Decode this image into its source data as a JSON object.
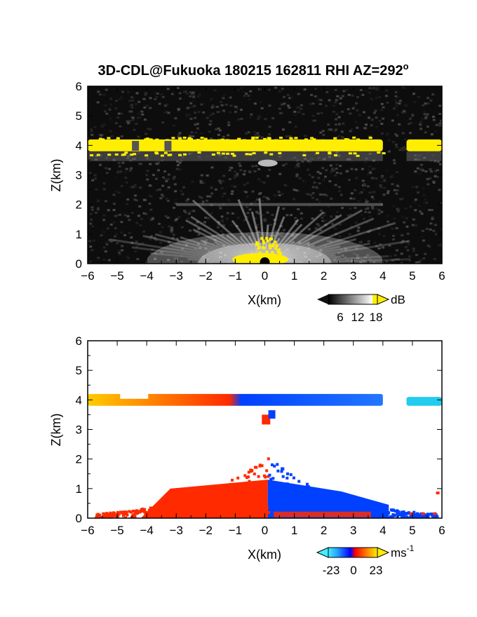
{
  "title_text": "3D-CDL@Fukuoka 180215 162811 RHI AZ=292",
  "title_degree": "o",
  "chart_data": [
    {
      "type": "heatmap",
      "panel": "reflectivity",
      "xlabel": "X(km)",
      "ylabel": "Z(km)",
      "xlim": [
        -6,
        6
      ],
      "ylim": [
        0,
        6
      ],
      "x_ticks": [
        "-6",
        "-5",
        "-4",
        "-3",
        "-2",
        "-1",
        "0",
        "1",
        "2",
        "3",
        "4",
        "5",
        "6"
      ],
      "y_ticks": [
        "0",
        "1",
        "2",
        "3",
        "4",
        "5",
        "6"
      ],
      "colorbar": {
        "unit": "dB",
        "ticks": [
          "6",
          "12",
          "18"
        ],
        "range": [
          0,
          20
        ]
      },
      "features": {
        "cloud_layer": {
          "z_bottom": 3.8,
          "z_top": 4.2,
          "x_ranges": [
            [
              -6,
              4
            ],
            [
              4.8,
              6
            ]
          ],
          "level": "18+"
        },
        "surface_echo": {
          "x_range": [
            -1.1,
            0.8
          ],
          "z_top": 0.9,
          "level": "18+"
        },
        "weak_layer": {
          "z": 2.0,
          "x_range": [
            -3,
            4
          ]
        },
        "radar_site": {
          "x": 0,
          "z": 0
        }
      },
      "colors": {
        "background": "#0d0d0d",
        "strong": "#ffee00"
      }
    },
    {
      "type": "heatmap",
      "panel": "velocity",
      "xlabel": "X(km)",
      "ylabel": "Z(km)",
      "xlim": [
        -6,
        6
      ],
      "ylim": [
        0,
        6
      ],
      "x_ticks": [
        "-6",
        "-5",
        "-4",
        "-3",
        "-2",
        "-1",
        "0",
        "1",
        "2",
        "3",
        "4",
        "5",
        "6"
      ],
      "y_ticks": [
        "0",
        "1",
        "2",
        "3",
        "4",
        "5",
        "6"
      ],
      "colorbar": {
        "unit": "ms",
        "unit_exponent": "-1",
        "ticks": [
          "-23",
          "0",
          "23"
        ],
        "range": [
          -30,
          30
        ]
      },
      "features": {
        "upper_layer": {
          "z_bottom": 3.8,
          "z_top": 4.2,
          "x_ranges": [
            [
              -6,
              4
            ],
            [
              4.8,
              6
            ]
          ],
          "left_sign": "positive",
          "right_sign": "negative"
        },
        "lower_layer": {
          "z_top": 2.2,
          "x_range": [
            -5.8,
            5.9
          ],
          "left_sign": "positive",
          "right_sign": "negative"
        }
      },
      "colors": {
        "positive": "#ff2a00",
        "negative": "#0040ff",
        "far_positive": "#ffcc00",
        "far_negative": "#22ccee"
      }
    }
  ]
}
